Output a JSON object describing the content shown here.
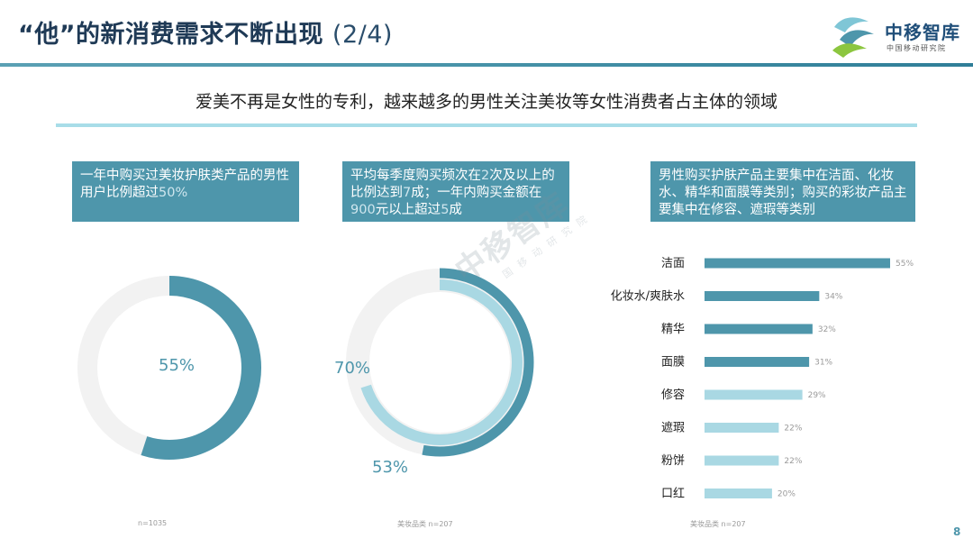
{
  "header": {
    "title": "“他”的新消费需求不断出现",
    "title_page": "(2/4)",
    "logo_name": "中移智库",
    "logo_sub": "中国移动研究院"
  },
  "subtitle": "爱美不再是女性的专利，越来越多的男性关注美妆等女性消费者占主体的领域",
  "callouts": {
    "c1": {
      "text_a": "一年中购买过美妆护肤类产品的男性用户比例超过",
      "highlight": "50%"
    },
    "c2": {
      "text_a": "平均每季度购买频次在",
      "hl1": "2",
      "text_b": "次及以上的比例达到",
      "hl2": "7",
      "text_c": "成；一年内购买金额在",
      "hl3": "900",
      "text_d": "元以上超过",
      "hl4": "5",
      "text_e": "成"
    },
    "c3": {
      "text": "男性购买护肤产品主要集中在洁面、化妆水、精华和面膜等类别；购买的彩妆产品主要集中在修容、遮瑕等类别"
    }
  },
  "notes": {
    "n1": "n=1035",
    "n2": "美妆品类 n=207",
    "n3": "美妆品类 n=207"
  },
  "watermark": {
    "main": "中移智库",
    "sub": "国移动研究院"
  },
  "page_number": "8",
  "colors": {
    "primary": "#4e96ab",
    "light": "#a9d8e3",
    "track": "#f2f2f2"
  },
  "chart_data": [
    {
      "type": "pie",
      "variant": "donut",
      "labels": [
        "55%"
      ],
      "values": [
        55
      ],
      "unit": "%",
      "note": "n=1035"
    },
    {
      "type": "pie",
      "variant": "nested-donut",
      "series": [
        {
          "values": [
            70
          ],
          "label": "70%"
        },
        {
          "values": [
            53
          ],
          "label": "53%"
        }
      ],
      "unit": "%",
      "note": "美妆品类 n=207"
    },
    {
      "type": "bar",
      "orientation": "horizontal",
      "categories": [
        "洁面",
        "化妆水/爽肤水",
        "精华",
        "面膜",
        "修容",
        "遮瑕",
        "粉饼",
        "口红"
      ],
      "values": [
        55,
        34,
        32,
        31,
        29,
        22,
        22,
        20
      ],
      "value_labels": [
        "55%",
        "34%",
        "32%",
        "31%",
        "29%",
        "22%",
        "22%",
        "20%"
      ],
      "bar_colors": [
        "#4e96ab",
        "#4e96ab",
        "#4e96ab",
        "#4e96ab",
        "#a9d8e3",
        "#a9d8e3",
        "#a9d8e3",
        "#a9d8e3"
      ],
      "xlim": [
        0,
        55
      ],
      "note": "美妆品类 n=207"
    }
  ]
}
